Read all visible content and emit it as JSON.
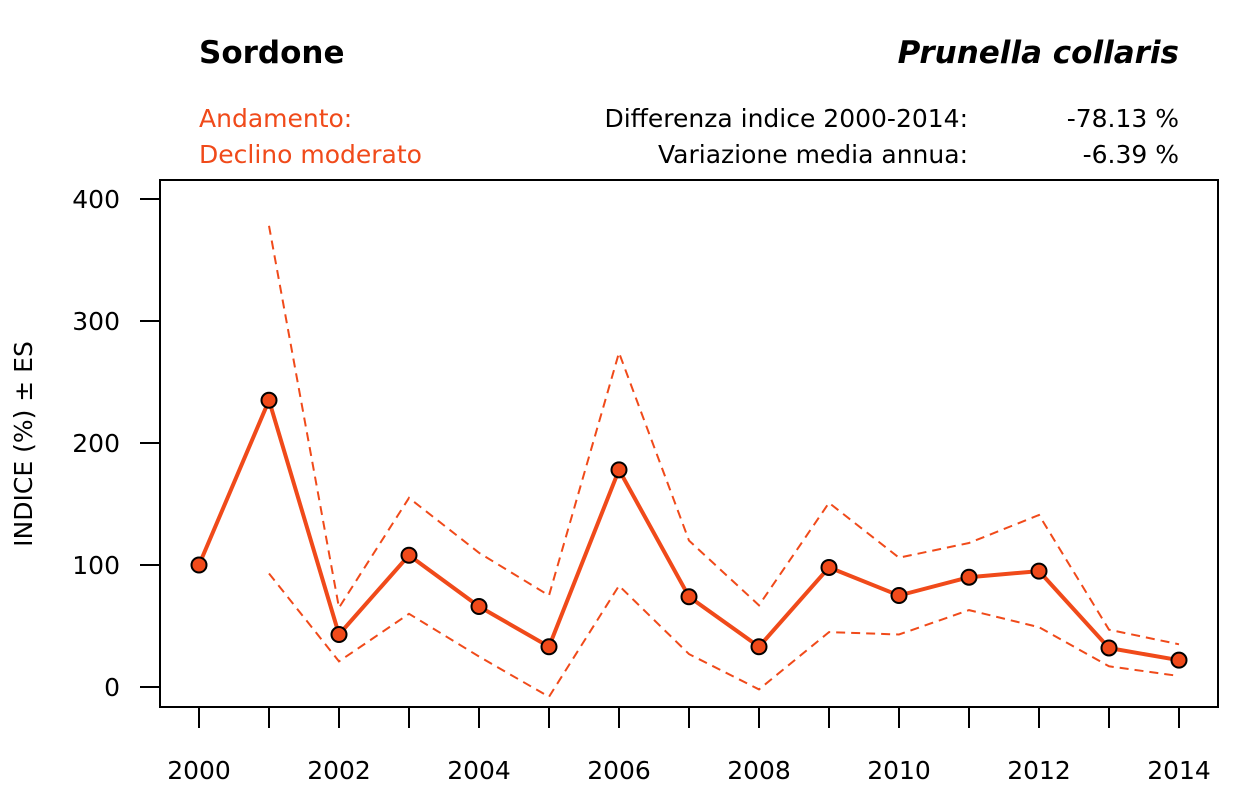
{
  "header": {
    "common_name": "Sordone",
    "species": "Prunella collaris",
    "trend_label": "Andamento:",
    "trend_value": "Declino moderato",
    "diff_label": "Differenza indice 2000-2014:",
    "diff_value": "-78.13 %",
    "annual_label": "Variazione media annua:",
    "annual_value": "-6.39 %"
  },
  "colors": {
    "accent": "#f04a1a",
    "axis": "#000000"
  },
  "chart_data": {
    "type": "line",
    "title": "",
    "xlabel": "",
    "ylabel": "INDICE (%) ± ES",
    "x": [
      2000,
      2001,
      2002,
      2003,
      2004,
      2005,
      2006,
      2007,
      2008,
      2009,
      2010,
      2011,
      2012,
      2013,
      2014
    ],
    "xlim": [
      2000,
      2014
    ],
    "ylim": [
      0,
      400
    ],
    "x_ticks": [
      2000,
      2001,
      2002,
      2003,
      2004,
      2005,
      2006,
      2007,
      2008,
      2009,
      2010,
      2011,
      2012,
      2013,
      2014
    ],
    "x_tick_labels": [
      "2000",
      "2002",
      "2004",
      "2006",
      "2008",
      "2010",
      "2012",
      "2014"
    ],
    "y_ticks": [
      0,
      100,
      200,
      300,
      400
    ],
    "y_tick_labels": [
      "0",
      "100",
      "200",
      "300",
      "400"
    ],
    "series": [
      {
        "name": "Indice",
        "values": [
          100,
          235,
          43,
          108,
          66,
          33,
          178,
          74,
          33,
          98,
          75,
          90,
          95,
          32,
          22
        ]
      },
      {
        "name": "Indice + ES",
        "values": [
          null,
          378,
          65,
          155,
          110,
          75,
          274,
          120,
          67,
          151,
          106,
          118,
          141,
          47,
          35
        ]
      },
      {
        "name": "Indice - ES",
        "values": [
          null,
          93,
          21,
          60,
          25,
          -8,
          83,
          27,
          -2,
          45,
          43,
          63,
          49,
          17,
          9
        ]
      }
    ]
  }
}
